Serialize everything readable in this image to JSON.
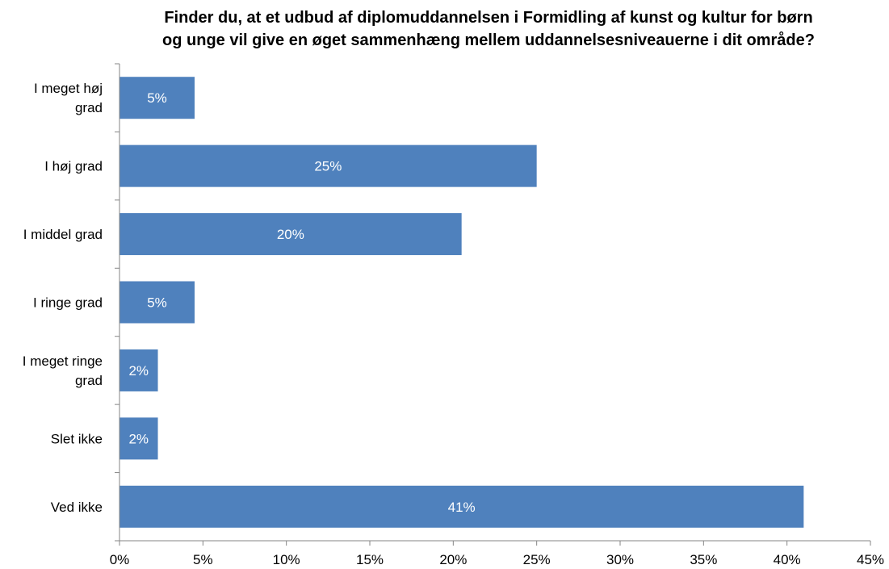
{
  "chart_data": {
    "type": "bar",
    "orientation": "horizontal",
    "title_lines": [
      "Finder du, at et udbud af diplomuddannelsen i Formidling af kunst og kultur for børn",
      "og unge vil give en øget sammenhæng mellem uddannelsesniveauerne i dit område?"
    ],
    "categories": [
      [
        "I meget høj",
        "grad"
      ],
      [
        "I høj grad"
      ],
      [
        "I middel grad"
      ],
      [
        "I ringe grad"
      ],
      [
        "I meget ringe",
        "grad"
      ],
      [
        "Slet ikke"
      ],
      [
        "Ved ikke"
      ]
    ],
    "values": [
      4.5,
      25,
      20.5,
      4.5,
      2.3,
      2.3,
      41
    ],
    "data_labels": [
      "5%",
      "25%",
      "20%",
      "5%",
      "2%",
      "2%",
      "41%"
    ],
    "xlim": [
      0,
      45
    ],
    "x_ticks": [
      "0%",
      "5%",
      "10%",
      "15%",
      "20%",
      "25%",
      "30%",
      "35%",
      "40%",
      "45%"
    ],
    "xlabel": "",
    "ylabel": "",
    "grid": false,
    "legend": "none",
    "bar_color": "#4f81bd",
    "axis_color": "#868686"
  }
}
